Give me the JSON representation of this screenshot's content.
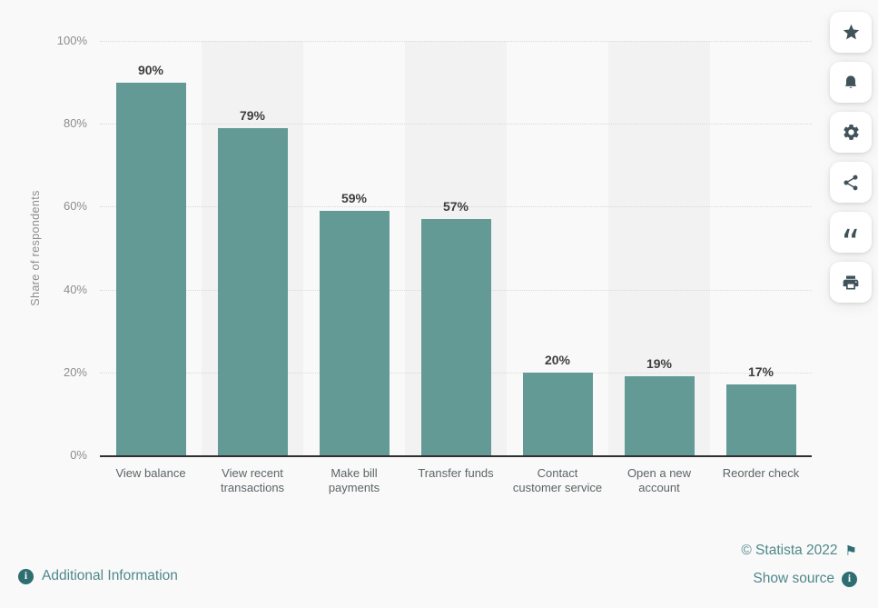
{
  "chart_data": {
    "type": "bar",
    "title": "",
    "categories": [
      "View balance",
      "View recent transactions",
      "Make bill payments",
      "Transfer funds",
      "Contact customer service",
      "Open a new account",
      "Reorder check"
    ],
    "values": [
      90,
      79,
      59,
      57,
      20,
      19,
      17
    ],
    "data_labels": [
      "90%",
      "79%",
      "59%",
      "57%",
      "20%",
      "19%",
      "17%"
    ],
    "xlabel": "",
    "ylabel": "Share of respondents",
    "ylim": [
      0,
      100
    ],
    "ytick_step": 20,
    "ytick_labels": [
      "0%",
      "20%",
      "40%",
      "60%",
      "80%",
      "100%"
    ],
    "grid": "horizontal dotted",
    "legend": "none",
    "plot_bands": "alternating category columns shaded"
  },
  "toolbar": {
    "buttons": [
      {
        "name": "favorite",
        "icon": "star-icon"
      },
      {
        "name": "notifications",
        "icon": "bell-icon"
      },
      {
        "name": "settings",
        "icon": "gear-icon"
      },
      {
        "name": "share",
        "icon": "share-icon"
      },
      {
        "name": "cite",
        "icon": "quote-icon"
      },
      {
        "name": "print",
        "icon": "print-icon"
      }
    ]
  },
  "footer": {
    "copyright": "© Statista 2022",
    "additional_information": "Additional Information",
    "show_source": "Show source"
  },
  "icons": {
    "flag_glyph": "⚑",
    "info_glyph": "i",
    "quote_glyph": "“"
  },
  "colors": {
    "page_bg": "#f9f9f9",
    "bar": "#639a95",
    "plot_band": "#f2f2f2",
    "gridline": "#d8d8d8",
    "axis_line": "#2f2f2f",
    "data_label": "#3e3e3e",
    "tick_label": "#8d8d8d",
    "category_label": "#5c6467",
    "link": "#4f888b",
    "link_icon": "#2e6e71",
    "toolbar_icon": "#40535a"
  }
}
